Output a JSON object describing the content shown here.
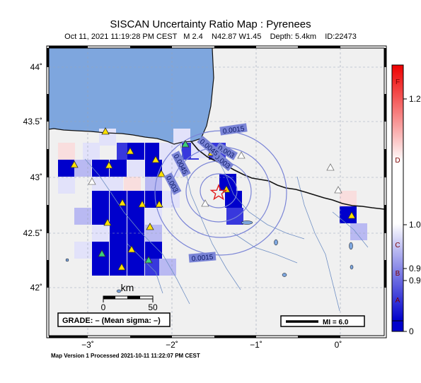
{
  "header": {
    "title": "SISCAN Uncertainty Ratio Map : Pyrenees",
    "subtitle": "Oct 11, 2021 11:19:28 PM CEST   M 2.4    N42.87 W1.45    Depth: 5.4km    ID:22473"
  },
  "map": {
    "lat_labels": [
      "44˚",
      "43.5˚",
      "43˚",
      "42.5˚",
      "42˚"
    ],
    "lon_labels": [
      "−3˚",
      "−2˚",
      "−1˚",
      "0˚"
    ],
    "contour_labels": [
      "0.0015",
      "0.003",
      "0.003",
      "0.0045",
      "0.0045",
      "0.003",
      "0.0015"
    ],
    "scale_bar": {
      "title": "km",
      "start": "0",
      "end": "50"
    },
    "grade_box": "GRADE: – (Mean sigma: –)",
    "mi_box": "MI = 6.0",
    "epicenter": {
      "lat": 42.87,
      "lon": -1.45
    },
    "colors": {
      "sea": "#7ea6de",
      "land": "#f0f0f0",
      "border": "#111111",
      "rivers": "#6f8fc4",
      "contours": "#7a84d6",
      "star": "#e11d1d"
    }
  },
  "colorbar": {
    "grades": [
      "F",
      "D",
      "C",
      "B",
      "A"
    ],
    "values": [
      "1.2",
      "1.0",
      "0.9",
      "0.9",
      "0"
    ]
  },
  "footer": {
    "text": "Map Version 1 Processed 2021-10-11 11:22:07 PM CEST"
  }
}
